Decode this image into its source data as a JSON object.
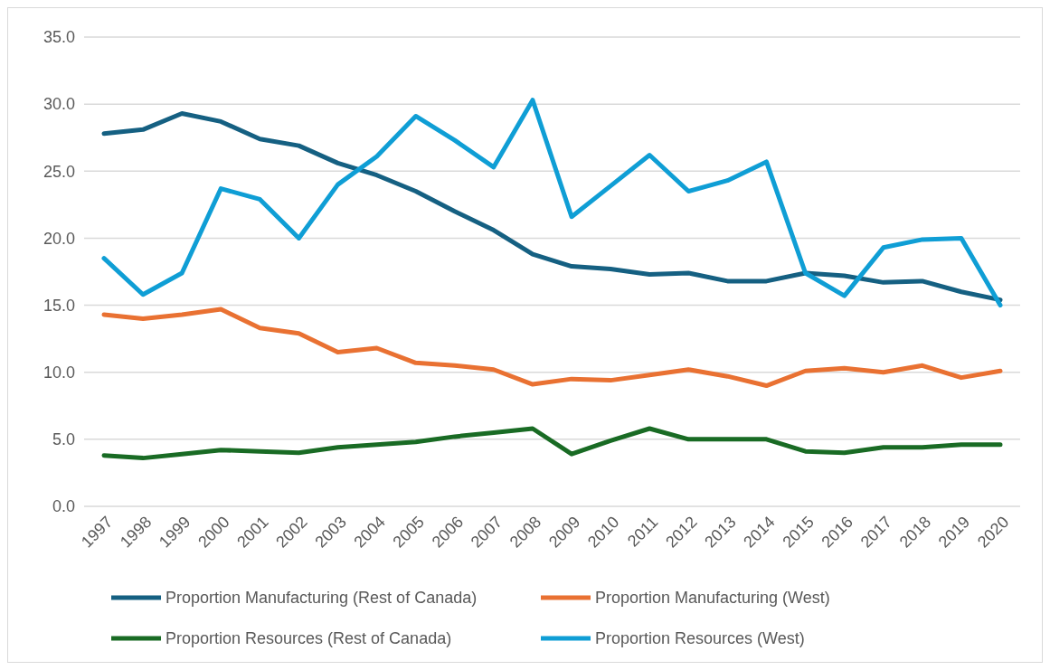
{
  "chart_data": {
    "type": "line",
    "categories": [
      "1997",
      "1998",
      "1999",
      "2000",
      "2001",
      "2002",
      "2003",
      "2004",
      "2005",
      "2006",
      "2007",
      "2008",
      "2009",
      "2010",
      "2011",
      "2012",
      "2013",
      "2014",
      "2015",
      "2016",
      "2017",
      "2018",
      "2019",
      "2020"
    ],
    "series": [
      {
        "name": "Proportion Manufacturing (Rest of Canada)",
        "color": "#156082",
        "values": [
          27.8,
          28.1,
          29.3,
          28.7,
          27.4,
          26.9,
          25.6,
          24.7,
          23.5,
          22.0,
          20.6,
          18.8,
          17.9,
          17.7,
          17.3,
          17.4,
          16.8,
          16.8,
          17.4,
          17.2,
          16.7,
          16.8,
          16.0,
          15.4
        ]
      },
      {
        "name": "Proportion Manufacturing (West)",
        "color": "#e97132",
        "values": [
          14.3,
          14.0,
          14.3,
          14.7,
          13.3,
          12.9,
          11.5,
          11.8,
          10.7,
          10.5,
          10.2,
          9.1,
          9.5,
          9.4,
          9.8,
          10.2,
          9.7,
          9.0,
          10.1,
          10.3,
          10.0,
          10.5,
          9.6,
          10.1
        ]
      },
      {
        "name": "Proportion Resources (Rest of Canada)",
        "color": "#196b24",
        "values": [
          3.8,
          3.6,
          3.9,
          4.2,
          4.1,
          4.0,
          4.4,
          4.6,
          4.8,
          5.2,
          5.5,
          5.8,
          3.9,
          4.9,
          5.8,
          5.0,
          5.0,
          5.0,
          4.1,
          4.0,
          4.4,
          4.4,
          4.6,
          4.6
        ]
      },
      {
        "name": "Proportion Resources (West)",
        "color": "#0f9ed5",
        "values": [
          18.5,
          15.8,
          17.4,
          23.7,
          22.9,
          20.0,
          24.0,
          26.1,
          29.1,
          27.3,
          25.3,
          30.3,
          21.6,
          23.9,
          26.2,
          23.5,
          24.3,
          25.7,
          17.4,
          15.7,
          19.3,
          19.9,
          20.0,
          15.0
        ]
      }
    ],
    "ylim": [
      0,
      35
    ],
    "yticks": [
      {
        "value": 0,
        "label": "0.0"
      },
      {
        "value": 5,
        "label": "5.0"
      },
      {
        "value": 10,
        "label": "10.0"
      },
      {
        "value": 15,
        "label": "15.0"
      },
      {
        "value": 20,
        "label": "20.0"
      },
      {
        "value": 25,
        "label": "25.0"
      },
      {
        "value": 30,
        "label": "30.0"
      },
      {
        "value": 35,
        "label": "35.0"
      }
    ],
    "grid": "y",
    "legend": "bottom",
    "marker": "none",
    "line_style": "solid"
  }
}
